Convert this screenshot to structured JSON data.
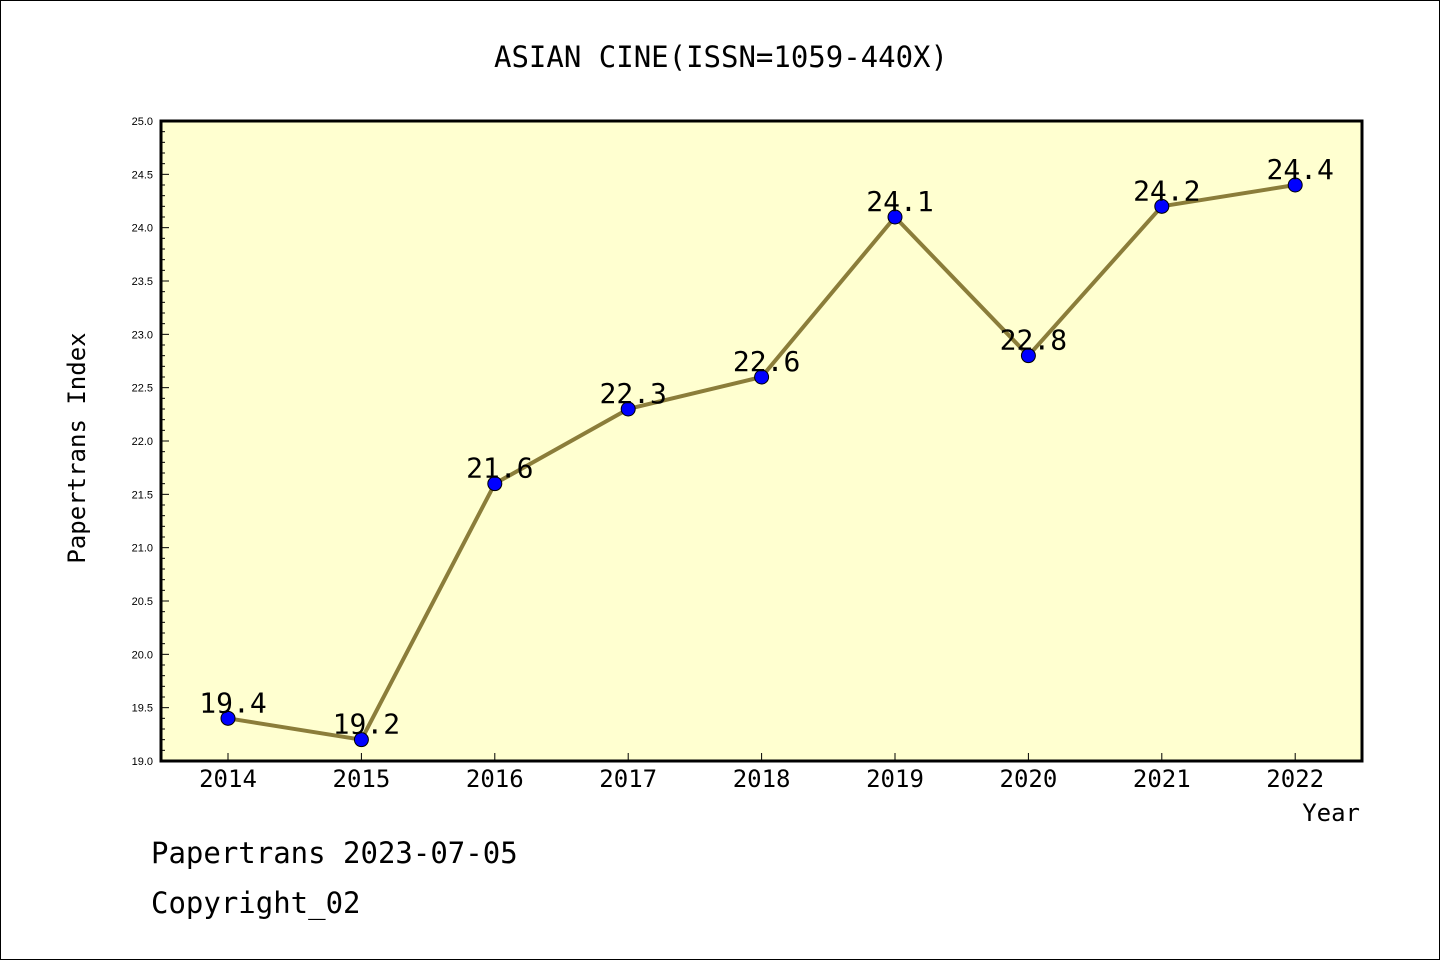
{
  "chart_data": {
    "type": "line",
    "title": "ASIAN CINE(ISSN=1059-440X)",
    "xlabel": "Year",
    "ylabel": "Papertrans Index",
    "categories": [
      "2014",
      "2015",
      "2016",
      "2017",
      "2018",
      "2019",
      "2020",
      "2021",
      "2022"
    ],
    "values": [
      19.4,
      19.2,
      21.6,
      22.3,
      22.6,
      24.1,
      22.8,
      24.2,
      24.4
    ],
    "data_labels": [
      "19.4",
      "19.2",
      "21.6",
      "22.3",
      "22.6",
      "24.1",
      "22.8",
      "24.2",
      "24.4"
    ],
    "ylim": [
      19.0,
      25.0
    ],
    "yticks": [
      "19.0",
      "19.5",
      "20.0",
      "20.5",
      "21.0",
      "21.5",
      "22.0",
      "22.5",
      "23.0",
      "23.5",
      "24.0",
      "24.5",
      "25.0"
    ],
    "grid": false,
    "legend": "none",
    "colors": {
      "plot_background": "#FFFFD0",
      "line": "#8B7D3A",
      "marker": "#0000FF"
    }
  },
  "footer": {
    "line1": "Papertrans 2023-07-05",
    "line2": "Copyright_02"
  }
}
